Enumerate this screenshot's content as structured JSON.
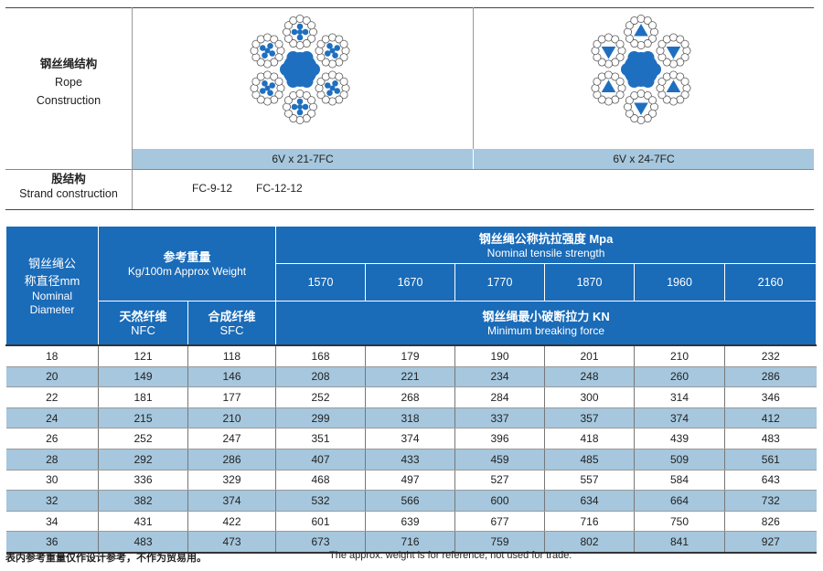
{
  "rope": {
    "label_cn": "钢丝绳结构",
    "label_en_line1": "Rope",
    "label_en_line2": "Construction",
    "constructions": [
      "6V x 21-7FC",
      "6V x 24-7FC"
    ],
    "strand_label_cn": "股结构",
    "strand_label_en": "Strand construction",
    "strand_values": [
      "FC-9-12",
      "FC-12-12"
    ]
  },
  "colors": {
    "header_blue": "#1a6bb8",
    "row_band": "#a6c7dd",
    "steel_blue": "#1f6fc0"
  },
  "table": {
    "diameter_cn_1": "钢丝绳公",
    "diameter_cn_2": "称直径mm",
    "diameter_en_1": "Nominal",
    "diameter_en_2": "Diameter",
    "weight_cn": "参考重量",
    "weight_en": "Kg/100m Approx Weight",
    "nfc_cn": "天然纤维",
    "nfc_en": "NFC",
    "sfc_cn": "合成纤维",
    "sfc_en": "SFC",
    "strength_cn": "钢丝绳公称抗拉强度 Mpa",
    "strength_en": "Nominal tensile strength",
    "grades": [
      "1570",
      "1670",
      "1770",
      "1870",
      "1960",
      "2160"
    ],
    "force_cn": "钢丝绳最小破断拉力 KN",
    "force_en": "Minimum breaking force",
    "rows": [
      [
        "18",
        "121",
        "118",
        "168",
        "179",
        "190",
        "201",
        "210",
        "232"
      ],
      [
        "20",
        "149",
        "146",
        "208",
        "221",
        "234",
        "248",
        "260",
        "286"
      ],
      [
        "22",
        "181",
        "177",
        "252",
        "268",
        "284",
        "300",
        "314",
        "346"
      ],
      [
        "24",
        "215",
        "210",
        "299",
        "318",
        "337",
        "357",
        "374",
        "412"
      ],
      [
        "26",
        "252",
        "247",
        "351",
        "374",
        "396",
        "418",
        "439",
        "483"
      ],
      [
        "28",
        "292",
        "286",
        "407",
        "433",
        "459",
        "485",
        "509",
        "561"
      ],
      [
        "30",
        "336",
        "329",
        "468",
        "497",
        "527",
        "557",
        "584",
        "643"
      ],
      [
        "32",
        "382",
        "374",
        "532",
        "566",
        "600",
        "634",
        "664",
        "732"
      ],
      [
        "34",
        "431",
        "422",
        "601",
        "639",
        "677",
        "716",
        "750",
        "826"
      ],
      [
        "36",
        "483",
        "473",
        "673",
        "716",
        "759",
        "802",
        "841",
        "927"
      ]
    ]
  },
  "footnote": {
    "cn": "表内参考重量仅作设计参考，不作为贸易用。",
    "en": "The approx. weight is for reference, not used for trade."
  }
}
